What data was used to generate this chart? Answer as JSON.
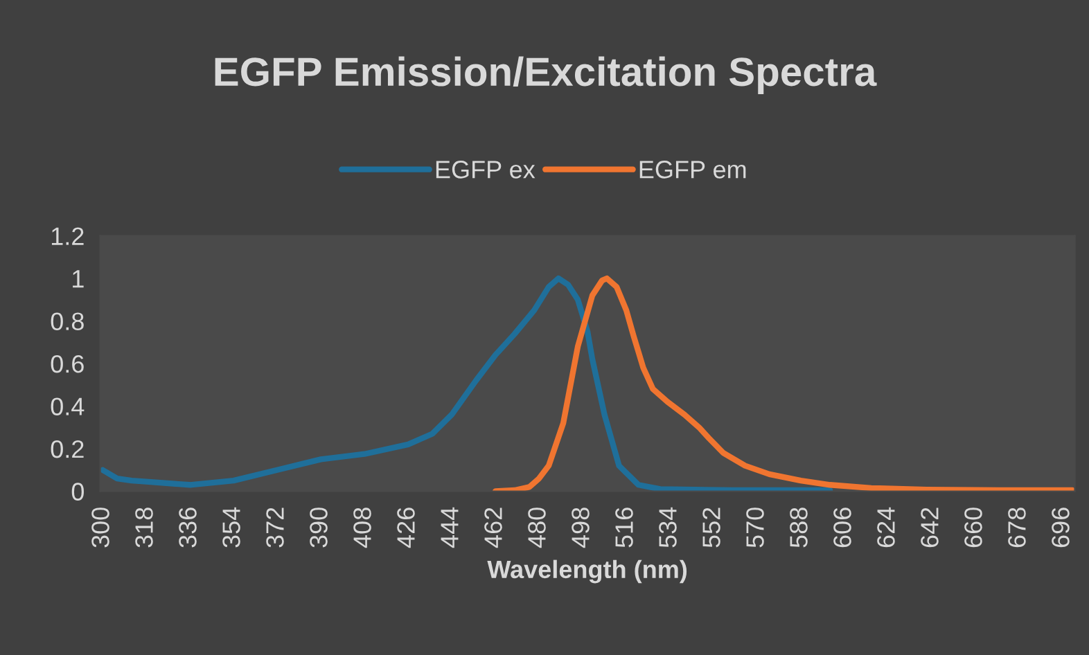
{
  "chart_data": {
    "type": "line",
    "title": "EGFP Emission/Excitation Spectra",
    "xlabel": "Wavelength (nm)",
    "xlim": [
      299,
      701
    ],
    "xticks": [
      300,
      318,
      336,
      354,
      372,
      390,
      408,
      426,
      444,
      462,
      480,
      498,
      516,
      534,
      552,
      570,
      588,
      606,
      624,
      642,
      660,
      678,
      696
    ],
    "ylim": [
      0,
      1.2
    ],
    "yticks": [
      0,
      0.2,
      0.4,
      0.6,
      0.8,
      1,
      1.2
    ],
    "grid": false,
    "legend": "top",
    "marker": "none",
    "line_style": "solid",
    "series": [
      {
        "name": "EGFP ex",
        "color": "#1f6f9a",
        "x": [
          300,
          306,
          312,
          318,
          336,
          354,
          372,
          390,
          408,
          426,
          436,
          444,
          454,
          462,
          470,
          478,
          484,
          488,
          492,
          496,
          500,
          502,
          507,
          513,
          521,
          530,
          560,
          600
        ],
        "values": [
          0.1,
          0.06,
          0.05,
          0.045,
          0.03,
          0.05,
          0.1,
          0.15,
          0.175,
          0.22,
          0.27,
          0.36,
          0.52,
          0.64,
          0.74,
          0.85,
          0.96,
          1.0,
          0.97,
          0.9,
          0.75,
          0.62,
          0.36,
          0.12,
          0.03,
          0.01,
          0.005,
          0.005
        ]
      },
      {
        "name": "EGFP em",
        "color": "#f07530",
        "x": [
          462,
          470,
          476,
          480,
          484,
          490,
          496,
          502,
          506,
          508,
          512,
          516,
          519,
          523,
          527,
          533,
          540,
          546,
          550,
          556,
          565,
          575,
          588,
          600,
          617,
          640,
          670,
          700
        ],
        "values": [
          0,
          0.005,
          0.02,
          0.06,
          0.12,
          0.32,
          0.68,
          0.92,
          0.99,
          1.0,
          0.96,
          0.85,
          0.73,
          0.58,
          0.48,
          0.42,
          0.36,
          0.3,
          0.25,
          0.18,
          0.12,
          0.08,
          0.05,
          0.03,
          0.015,
          0.008,
          0.005,
          0.005
        ]
      }
    ]
  }
}
